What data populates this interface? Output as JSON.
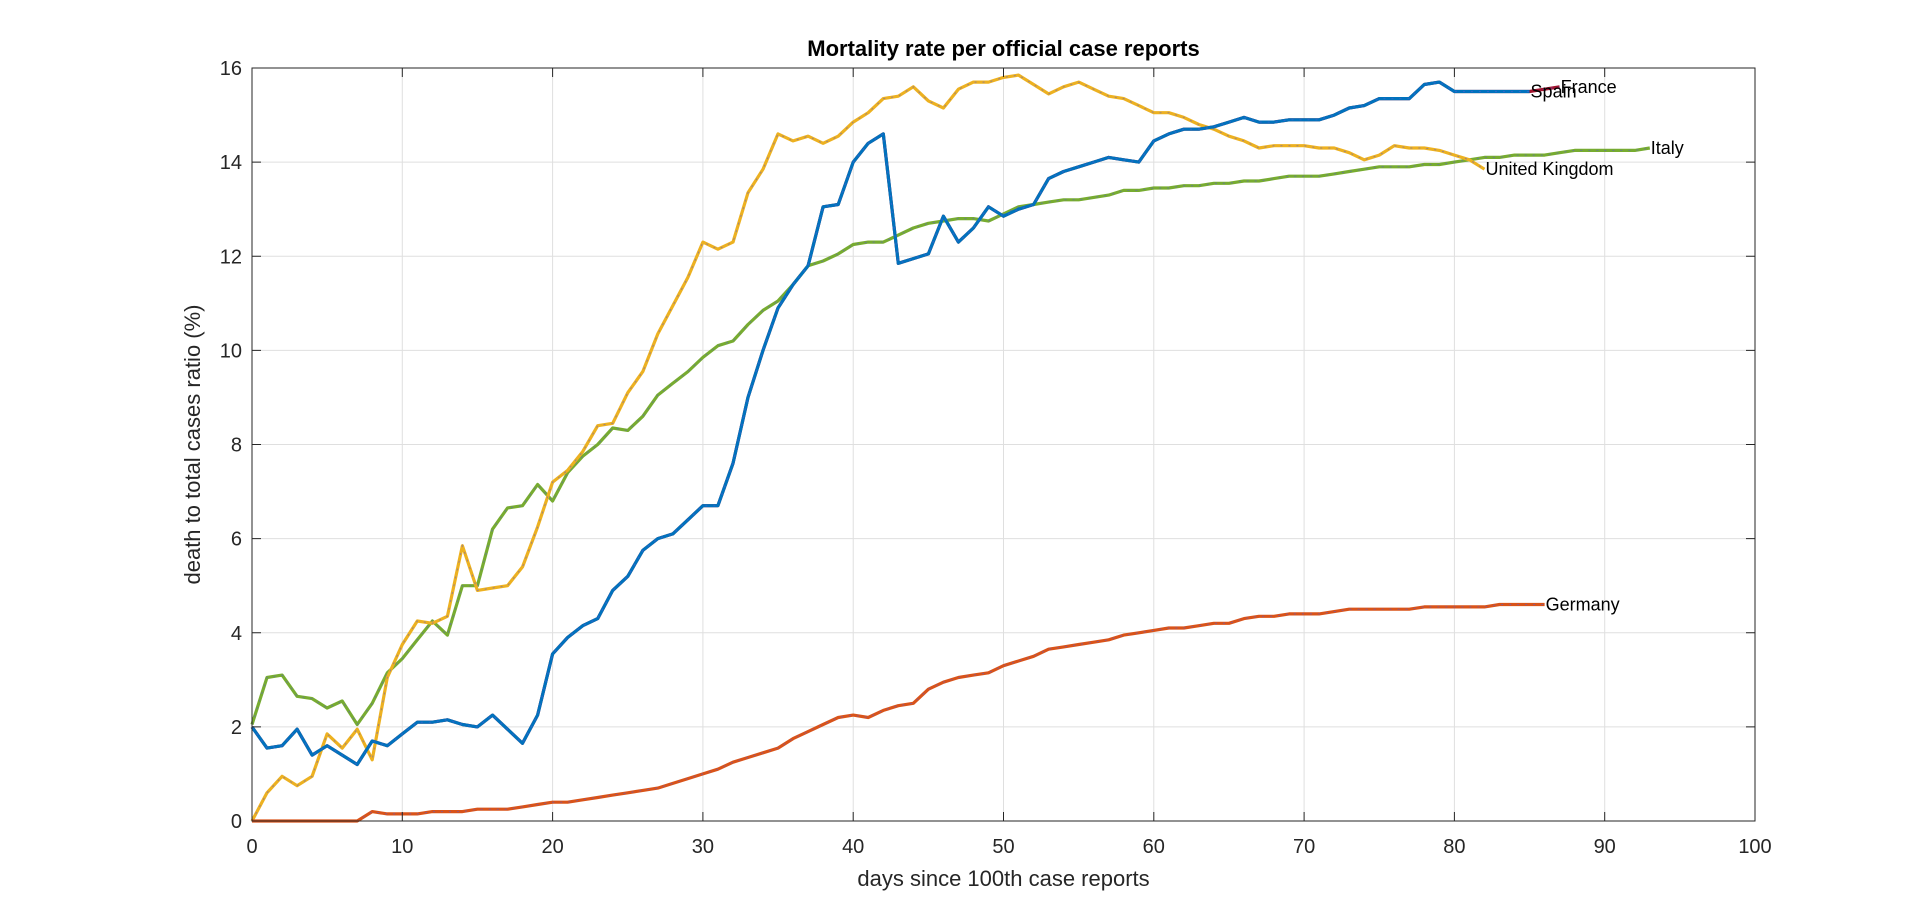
{
  "chart_data": {
    "type": "line",
    "title": "Mortality rate per official case reports",
    "xlabel": "days since 100th case reports",
    "ylabel": "death to total cases ratio (%)",
    "xlim": [
      0,
      100
    ],
    "ylim": [
      0,
      16
    ],
    "xticks": [
      "0",
      "10",
      "20",
      "30",
      "40",
      "50",
      "60",
      "70",
      "80",
      "90",
      "100"
    ],
    "yticks": [
      "0",
      "2",
      "4",
      "6",
      "8",
      "10",
      "12",
      "14",
      "16"
    ],
    "grid": true,
    "legend": "none",
    "series": [
      {
        "name": "France",
        "color": "#A2142F",
        "x": [
          0,
          1,
          2,
          3,
          4,
          5,
          6,
          7,
          8,
          9,
          10,
          11,
          12,
          13,
          14,
          15,
          16,
          17,
          18,
          19,
          20,
          21,
          22,
          23,
          24,
          25,
          26,
          27,
          28,
          29,
          30,
          31,
          32,
          33,
          34,
          35,
          36,
          37,
          38,
          39,
          40,
          41,
          42,
          43,
          44,
          45,
          46,
          47,
          48,
          49,
          50,
          51,
          52,
          53,
          54,
          55,
          56,
          57,
          58,
          59,
          60,
          61,
          62,
          63,
          64,
          65,
          66,
          67,
          68,
          69,
          70,
          71,
          72,
          73,
          74,
          75,
          76,
          77,
          78,
          79,
          80,
          81,
          82,
          83,
          84,
          85,
          86,
          87
        ],
        "y": [
          2.0,
          1.55,
          1.6,
          1.95,
          1.4,
          1.6,
          1.4,
          1.2,
          1.7,
          1.6,
          1.85,
          2.1,
          2.1,
          2.15,
          2.05,
          2.0,
          2.25,
          1.95,
          1.65,
          2.25,
          3.55,
          3.9,
          4.15,
          4.3,
          4.9,
          5.2,
          5.75,
          6.0,
          6.1,
          6.4,
          6.7,
          6.7,
          7.6,
          9.0,
          10.0,
          10.9,
          11.4,
          11.8,
          13.05,
          13.1,
          14.0,
          14.4,
          14.6,
          11.85,
          11.95,
          12.05,
          12.85,
          12.3,
          12.6,
          13.05,
          12.85,
          13.0,
          13.1,
          13.65,
          13.8,
          13.9,
          14.0,
          14.1,
          14.05,
          14.0,
          14.45,
          14.6,
          14.7,
          14.7,
          14.75,
          14.85,
          14.95,
          14.85,
          14.85,
          14.9,
          14.9,
          14.9,
          15.0,
          15.15,
          15.2,
          15.35,
          15.35,
          15.35,
          15.65,
          15.7,
          15.5,
          15.5,
          15.5,
          15.5,
          15.5,
          15.5,
          15.55,
          15.6
        ]
      },
      {
        "name": "Italy",
        "color": "#77AC30",
        "x": [
          0,
          1,
          2,
          3,
          4,
          5,
          6,
          7,
          8,
          9,
          10,
          11,
          12,
          13,
          14,
          15,
          16,
          17,
          18,
          19,
          20,
          21,
          22,
          23,
          24,
          25,
          26,
          27,
          28,
          29,
          30,
          31,
          32,
          33,
          34,
          35,
          36,
          37,
          38,
          39,
          40,
          41,
          42,
          43,
          44,
          45,
          46,
          47,
          48,
          49,
          50,
          51,
          52,
          53,
          54,
          55,
          56,
          57,
          58,
          59,
          60,
          61,
          62,
          63,
          64,
          65,
          66,
          67,
          68,
          69,
          70,
          71,
          72,
          73,
          74,
          75,
          76,
          77,
          78,
          79,
          80,
          81,
          82,
          83,
          84,
          85,
          86,
          87,
          88,
          89,
          90,
          91,
          92,
          93
        ],
        "y": [
          2.05,
          3.05,
          3.1,
          2.65,
          2.6,
          2.4,
          2.55,
          2.05,
          2.5,
          3.15,
          3.45,
          3.85,
          4.25,
          3.95,
          5.0,
          5.0,
          6.2,
          6.65,
          6.7,
          7.15,
          6.8,
          7.4,
          7.75,
          8.0,
          8.35,
          8.3,
          8.6,
          9.05,
          9.3,
          9.55,
          9.85,
          10.1,
          10.2,
          10.55,
          10.85,
          11.05,
          11.4,
          11.8,
          11.9,
          12.05,
          12.25,
          12.3,
          12.3,
          12.45,
          12.6,
          12.7,
          12.75,
          12.8,
          12.8,
          12.75,
          12.9,
          13.05,
          13.1,
          13.15,
          13.2,
          13.2,
          13.25,
          13.3,
          13.4,
          13.4,
          13.45,
          13.45,
          13.5,
          13.5,
          13.55,
          13.55,
          13.6,
          13.6,
          13.65,
          13.7,
          13.7,
          13.7,
          13.75,
          13.8,
          13.85,
          13.9,
          13.9,
          13.9,
          13.95,
          13.95,
          14.0,
          14.05,
          14.1,
          14.1,
          14.15,
          14.15,
          14.15,
          14.2,
          14.25,
          14.25,
          14.25,
          14.25,
          14.25,
          14.3
        ]
      },
      {
        "name": "United Kingdom",
        "color": "#EDB120",
        "x": [
          0,
          1,
          2,
          3,
          4,
          5,
          6,
          7,
          8,
          9,
          10,
          11,
          12,
          13,
          14,
          15,
          16,
          17,
          18,
          19,
          20,
          21,
          22,
          23,
          24,
          25,
          26,
          27,
          28,
          29,
          30,
          31,
          32,
          33,
          34,
          35,
          36,
          37,
          38,
          39,
          40,
          41,
          42,
          43,
          44,
          45,
          46,
          47,
          48,
          49,
          50,
          51,
          52,
          53,
          54,
          55,
          56,
          57,
          58,
          59,
          60,
          61,
          62,
          63,
          64,
          65,
          66,
          67,
          68,
          69,
          70,
          71,
          72,
          73,
          74,
          75,
          76,
          77,
          78,
          79,
          80,
          81,
          82
        ],
        "y": [
          0,
          0.6,
          0.95,
          0.75,
          0.95,
          1.85,
          1.55,
          1.95,
          1.3,
          3.05,
          3.75,
          4.25,
          4.2,
          4.35,
          5.85,
          4.9,
          4.95,
          5.0,
          5.4,
          6.25,
          7.2,
          7.45,
          7.85,
          8.4,
          8.45,
          9.1,
          9.55,
          10.35,
          10.95,
          11.55,
          12.3,
          12.15,
          12.3,
          13.35,
          13.85,
          14.6,
          14.45,
          14.55,
          14.4,
          14.55,
          14.85,
          15.05,
          15.35,
          15.4,
          15.6,
          15.3,
          15.15,
          15.55,
          15.7,
          15.7,
          15.8,
          15.85,
          15.65,
          15.45,
          15.6,
          15.7,
          15.55,
          15.4,
          15.35,
          15.2,
          15.05,
          15.05,
          14.95,
          14.8,
          14.7,
          14.55,
          14.45,
          14.3,
          14.35,
          14.35,
          14.35,
          14.3,
          14.3,
          14.2,
          14.05,
          14.15,
          14.35,
          14.3,
          14.3,
          14.25,
          14.15,
          14.05,
          13.85
        ]
      },
      {
        "name": "Spain",
        "color": "#0072BD",
        "x": [
          0,
          1,
          2,
          3,
          4,
          5,
          6,
          7,
          8,
          9,
          10,
          11,
          12,
          13,
          14,
          15,
          16,
          17,
          18,
          19,
          20,
          21,
          22,
          23,
          24,
          25,
          26,
          27,
          28,
          29,
          30,
          31,
          32,
          33,
          34,
          35,
          36,
          37,
          38,
          39,
          40,
          41,
          42,
          43,
          44,
          45,
          46,
          47,
          48,
          49,
          50,
          51,
          52,
          53,
          54,
          55,
          56,
          57,
          58,
          59,
          60,
          61,
          62,
          63,
          64,
          65,
          66,
          67,
          68,
          69,
          70,
          71,
          72,
          73,
          74,
          75,
          76,
          77,
          78,
          79,
          80,
          81,
          82,
          83,
          84,
          85
        ],
        "y": [
          2.0,
          1.55,
          1.6,
          1.95,
          1.4,
          1.6,
          1.4,
          1.2,
          1.7,
          1.6,
          1.85,
          2.1,
          2.1,
          2.15,
          2.05,
          2.0,
          2.25,
          1.95,
          1.65,
          2.25,
          3.55,
          3.9,
          4.15,
          4.3,
          4.9,
          5.2,
          5.75,
          6.0,
          6.1,
          6.4,
          6.7,
          6.7,
          7.6,
          9.0,
          10.0,
          10.9,
          11.4,
          11.8,
          13.05,
          13.1,
          14.0,
          14.4,
          14.6,
          11.85,
          11.95,
          12.05,
          12.85,
          12.3,
          12.6,
          13.05,
          12.85,
          13.0,
          13.1,
          13.65,
          13.8,
          13.9,
          14.0,
          14.1,
          14.05,
          14.0,
          14.45,
          14.6,
          14.7,
          14.7,
          14.75,
          14.85,
          14.95,
          14.85,
          14.85,
          14.9,
          14.9,
          14.9,
          15.0,
          15.15,
          15.2,
          15.35,
          15.35,
          15.35,
          15.65,
          15.7,
          15.5,
          15.5,
          15.5,
          15.5,
          15.5,
          15.5
        ]
      },
      {
        "name": "Germany",
        "color": "#D95319",
        "x": [
          0,
          1,
          2,
          3,
          4,
          5,
          6,
          7,
          8,
          9,
          10,
          11,
          12,
          13,
          14,
          15,
          16,
          17,
          18,
          19,
          20,
          21,
          22,
          23,
          24,
          25,
          26,
          27,
          28,
          29,
          30,
          31,
          32,
          33,
          34,
          35,
          36,
          37,
          38,
          39,
          40,
          41,
          42,
          43,
          44,
          45,
          46,
          47,
          48,
          49,
          50,
          51,
          52,
          53,
          54,
          55,
          56,
          57,
          58,
          59,
          60,
          61,
          62,
          63,
          64,
          65,
          66,
          67,
          68,
          69,
          70,
          71,
          72,
          73,
          74,
          75,
          76,
          77,
          78,
          79,
          80,
          81,
          82,
          83,
          84,
          85,
          86
        ],
        "y": [
          0,
          0,
          0,
          0,
          0,
          0,
          0,
          0,
          0.2,
          0.15,
          0.15,
          0.15,
          0.2,
          0.2,
          0.2,
          0.25,
          0.25,
          0.25,
          0.3,
          0.35,
          0.4,
          0.4,
          0.45,
          0.5,
          0.55,
          0.6,
          0.65,
          0.7,
          0.8,
          0.9,
          1.0,
          1.1,
          1.25,
          1.35,
          1.45,
          1.55,
          1.75,
          1.9,
          2.05,
          2.2,
          2.25,
          2.2,
          2.35,
          2.45,
          2.5,
          2.8,
          2.95,
          3.05,
          3.1,
          3.15,
          3.3,
          3.4,
          3.5,
          3.65,
          3.7,
          3.75,
          3.8,
          3.85,
          3.95,
          4.0,
          4.05,
          4.1,
          4.1,
          4.15,
          4.2,
          4.2,
          4.3,
          4.35,
          4.35,
          4.4,
          4.4,
          4.4,
          4.45,
          4.5,
          4.5,
          4.5,
          4.5,
          4.5,
          4.55,
          4.55,
          4.55,
          4.55,
          4.55,
          4.6,
          4.6,
          4.6,
          4.6
        ]
      }
    ]
  }
}
